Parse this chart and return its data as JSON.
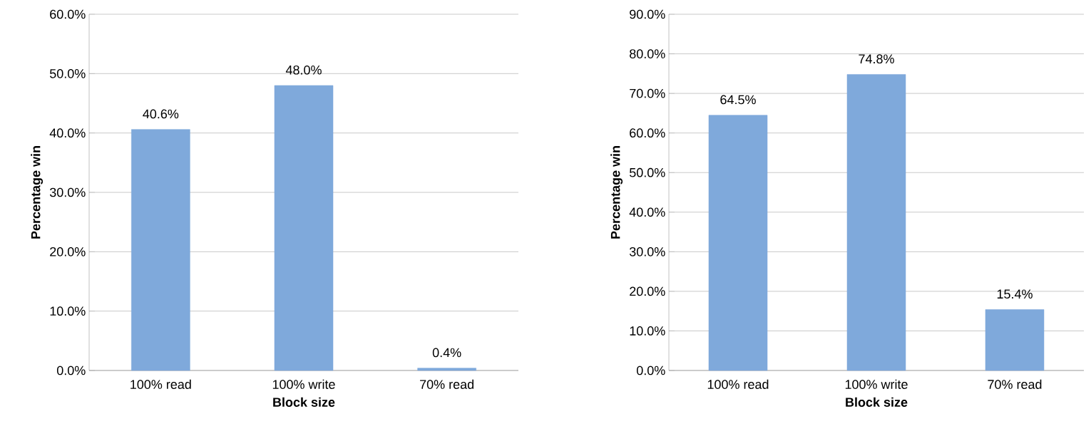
{
  "chart_data": [
    {
      "type": "bar",
      "categories": [
        "100% read",
        "100% write",
        "70% read"
      ],
      "values": [
        40.6,
        48.0,
        0.4
      ],
      "value_labels": [
        "40.6%",
        "48.0%",
        "0.4%"
      ],
      "color": "#7fa9db",
      "xlabel": "Block size",
      "ylabel": "Percentage win",
      "ylim": [
        0,
        60
      ],
      "yticks": [
        {
          "value": 0,
          "label": "0.0%"
        },
        {
          "value": 10,
          "label": "10.0%"
        },
        {
          "value": 20,
          "label": "20.0%"
        },
        {
          "value": 30,
          "label": "30.0%"
        },
        {
          "value": 40,
          "label": "40.0%"
        },
        {
          "value": 50,
          "label": "50.0%"
        },
        {
          "value": 60,
          "label": "60.0%"
        }
      ],
      "grid": "y"
    },
    {
      "type": "bar",
      "categories": [
        "100% read",
        "100% write",
        "70% read"
      ],
      "values": [
        64.5,
        74.8,
        15.4
      ],
      "value_labels": [
        "64.5%",
        "74.8%",
        "15.4%"
      ],
      "color": "#7fa9db",
      "xlabel": "Block size",
      "ylabel": "Percentage win",
      "ylim": [
        0,
        90
      ],
      "yticks": [
        {
          "value": 0,
          "label": "0.0%"
        },
        {
          "value": 10,
          "label": "10.0%"
        },
        {
          "value": 20,
          "label": "20.0%"
        },
        {
          "value": 30,
          "label": "30.0%"
        },
        {
          "value": 40,
          "label": "40.0%"
        },
        {
          "value": 50,
          "label": "50.0%"
        },
        {
          "value": 60,
          "label": "60.0%"
        },
        {
          "value": 70,
          "label": "70.0%"
        },
        {
          "value": 80,
          "label": "80.0%"
        },
        {
          "value": 90,
          "label": "90.0%"
        }
      ],
      "grid": "y"
    }
  ]
}
